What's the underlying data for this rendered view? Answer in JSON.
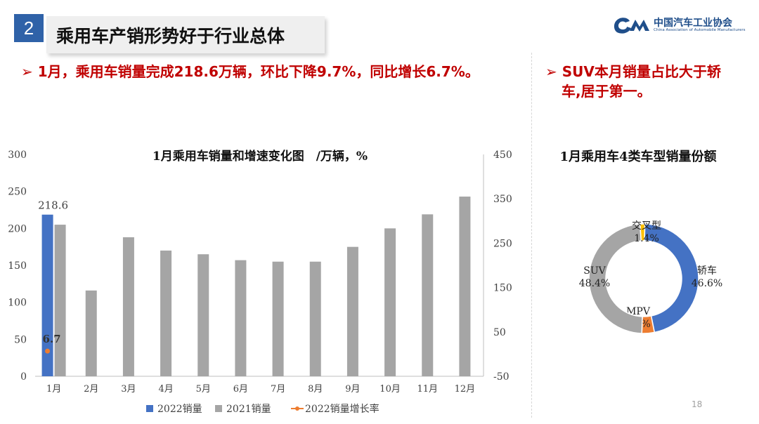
{
  "section_number": "2",
  "slide_title": "乘用车产销形势好于行业总体",
  "logo": {
    "cn": "中国汽车工业协会",
    "en": "China Association of Automobile Manufacturers"
  },
  "headline_left": "➢ 1月，乘用车销量完成218.6万辆，环比下降9.7%，同比增长6.7%。",
  "headline_right_line1": "➢ SUV本月销量占比大于轿",
  "headline_right_line2": "车,居于第一。",
  "page_number": "18",
  "colors": {
    "red": "#C00000",
    "blue": "#4472C4",
    "gray": "#A5A5A5",
    "orange": "#ED7D31",
    "yellow": "#FFC000"
  },
  "chart_data": [
    {
      "type": "bar",
      "title": "1月乘用车销量和增速变化图　/万辆，%",
      "categories": [
        "1月",
        "2月",
        "3月",
        "4月",
        "5月",
        "6月",
        "7月",
        "8月",
        "9月",
        "10月",
        "11月",
        "12月"
      ],
      "series": [
        {
          "name": "2022销量",
          "kind": "bar",
          "axis": "left",
          "color": "#4472C4",
          "values": [
            218.6,
            null,
            null,
            null,
            null,
            null,
            null,
            null,
            null,
            null,
            null,
            null
          ]
        },
        {
          "name": "2021销量",
          "kind": "bar",
          "axis": "left",
          "color": "#A5A5A5",
          "values": [
            205,
            116,
            188,
            170,
            165,
            157,
            155,
            155,
            175,
            200,
            219,
            243
          ]
        },
        {
          "name": "2022销量增长率",
          "kind": "line",
          "axis": "right",
          "color": "#ED7D31",
          "values": [
            6.7,
            null,
            null,
            null,
            null,
            null,
            null,
            null,
            null,
            null,
            null,
            null
          ]
        }
      ],
      "data_labels": [
        "218.6",
        "6.7"
      ],
      "ylim": [
        0,
        300
      ],
      "yticks": [
        "0",
        "50",
        "100",
        "150",
        "200",
        "250",
        "300"
      ],
      "y2lim": [
        -50,
        450
      ],
      "y2ticks": [
        "-50",
        "50",
        "150",
        "250",
        "350",
        "450"
      ],
      "legend_position": "bottom"
    },
    {
      "type": "pie",
      "title": "1月乘用车4类车型销量份额",
      "donut": true,
      "slices": [
        {
          "label": "轿车",
          "value": 46.6,
          "value_label": "46.6%",
          "color": "#4472C4"
        },
        {
          "label": "MPV",
          "value": 3.7,
          "value_label": "3.7%",
          "color": "#ED7D31"
        },
        {
          "label": "SUV",
          "value": 48.4,
          "value_label": "48.4%",
          "color": "#A5A5A5"
        },
        {
          "label": "交叉型",
          "value": 1.4,
          "value_label": "1.4%",
          "color": "#FFC000"
        }
      ]
    }
  ]
}
